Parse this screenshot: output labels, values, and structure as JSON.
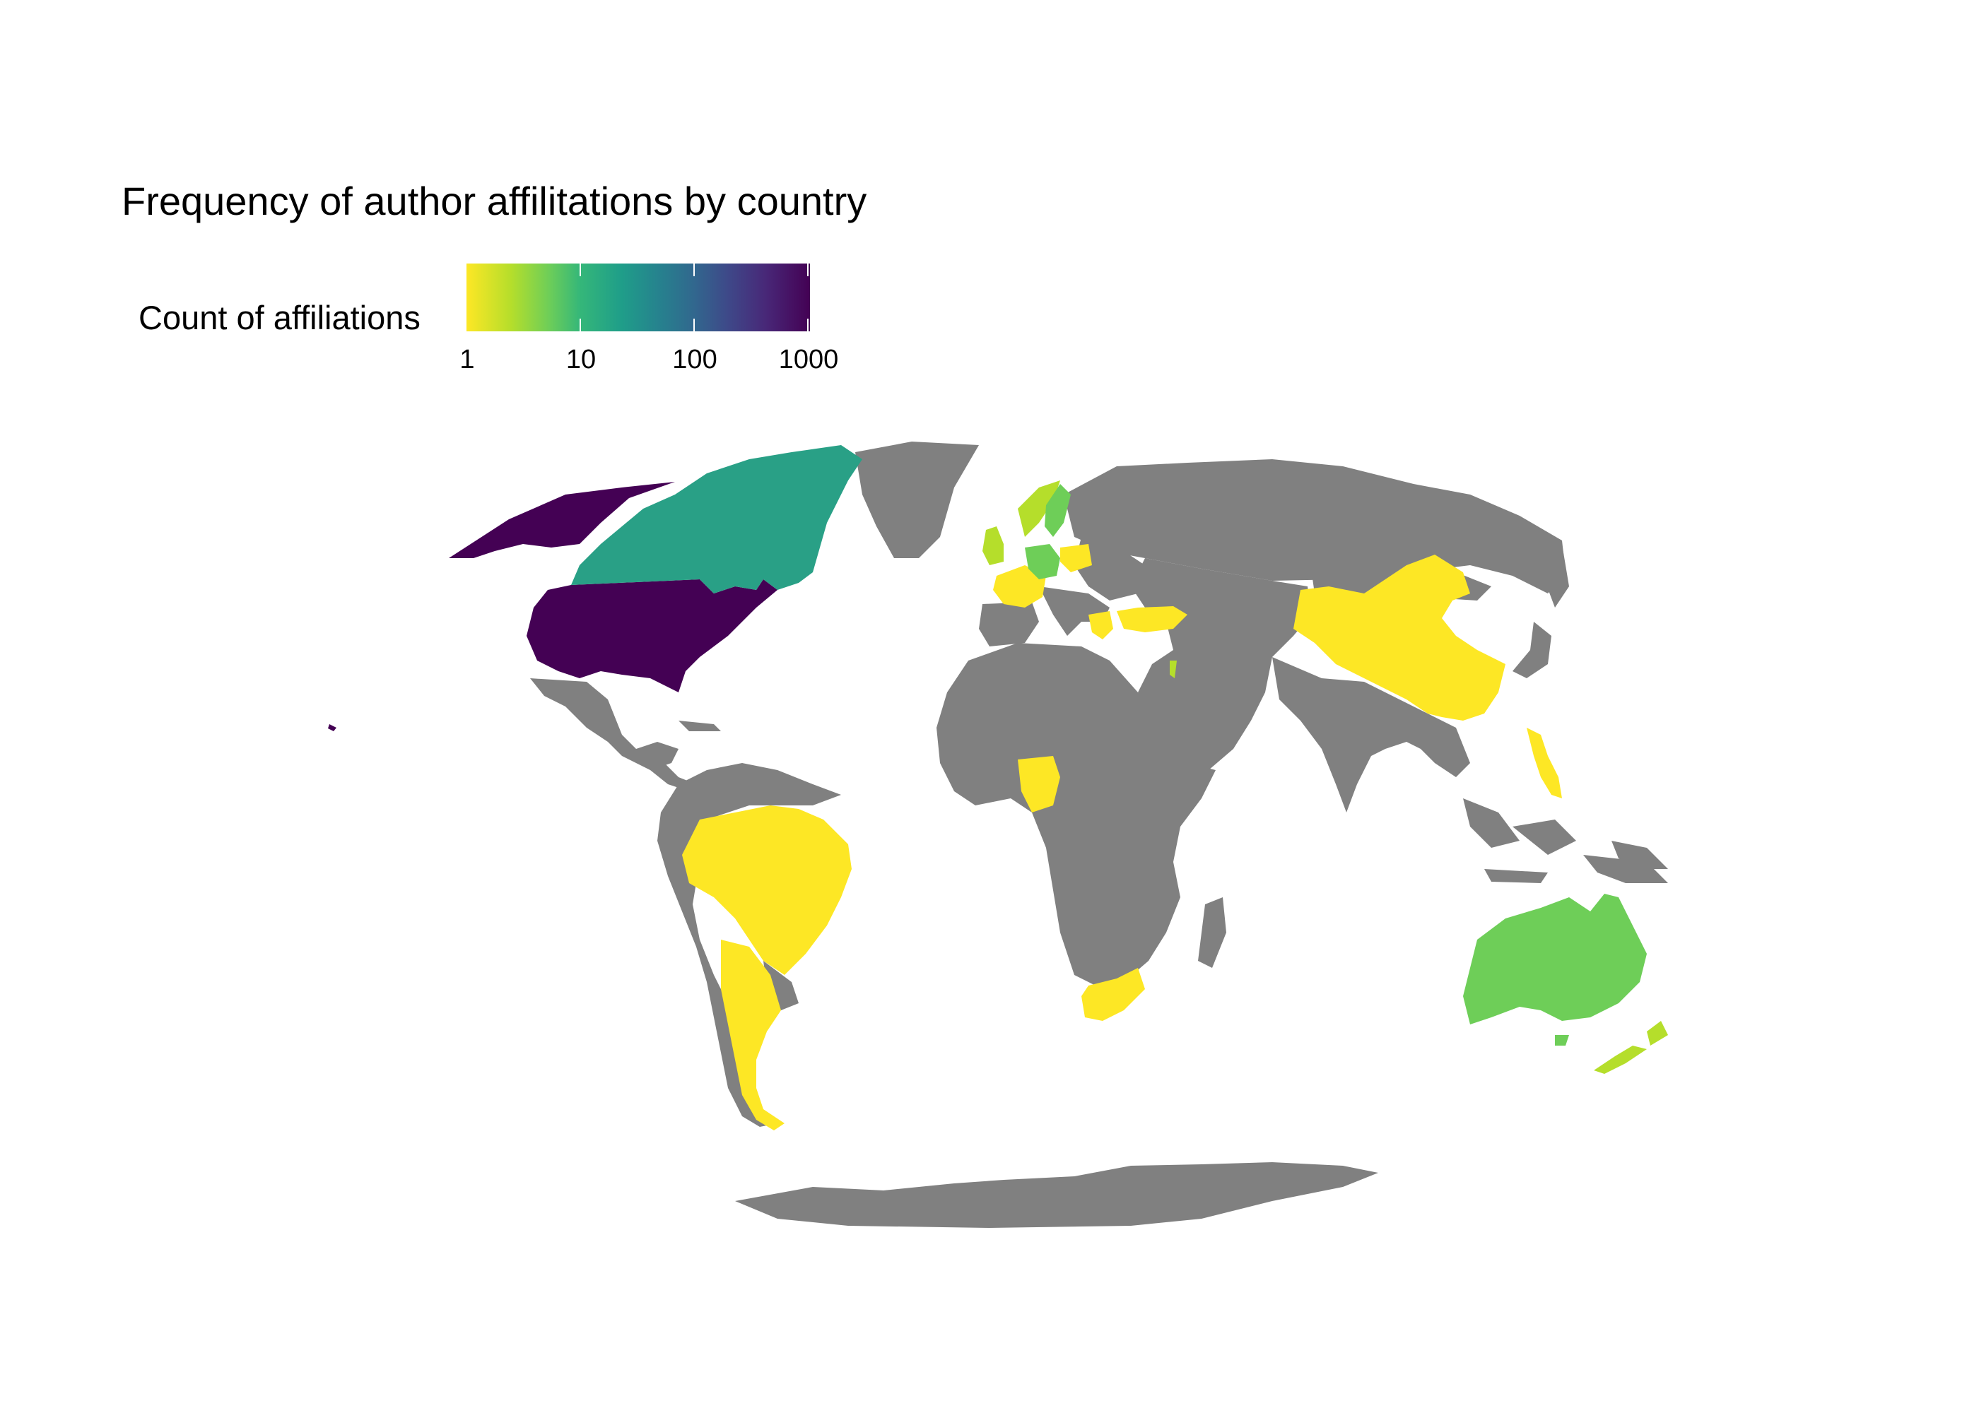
{
  "title": "Frequency of author affilitations by country",
  "legend": {
    "title": "Count of affiliations",
    "ticks": [
      "1",
      "10",
      "100",
      "1000"
    ],
    "scale": "log10",
    "palette": "viridis (reversed)",
    "colors": [
      "#fde725",
      "#6ece58",
      "#1f9e89",
      "#31688e",
      "#440154"
    ]
  },
  "no_data_color": "#808080",
  "countries": [
    {
      "name": "United States",
      "fill": "#440154"
    },
    {
      "name": "Canada",
      "fill": "#29a086"
    },
    {
      "name": "Australia",
      "fill": "#6ece58"
    },
    {
      "name": "New Zealand",
      "fill": "#b5de2b"
    },
    {
      "name": "Germany",
      "fill": "#6ece58"
    },
    {
      "name": "Sweden",
      "fill": "#6ece58"
    },
    {
      "name": "Norway",
      "fill": "#b5de2b"
    },
    {
      "name": "United Kingdom",
      "fill": "#b5de2b"
    },
    {
      "name": "Poland",
      "fill": "#fde725"
    },
    {
      "name": "France",
      "fill": "#fde725"
    },
    {
      "name": "Turkey",
      "fill": "#fde725"
    },
    {
      "name": "Greece",
      "fill": "#fde725"
    },
    {
      "name": "Israel",
      "fill": "#b5de2b"
    },
    {
      "name": "China",
      "fill": "#fde725"
    },
    {
      "name": "Philippines",
      "fill": "#fde725"
    },
    {
      "name": "Nigeria",
      "fill": "#fde725"
    },
    {
      "name": "South Africa",
      "fill": "#fde725"
    },
    {
      "name": "Brazil",
      "fill": "#fde725"
    },
    {
      "name": "Argentina",
      "fill": "#fde725"
    }
  ]
}
